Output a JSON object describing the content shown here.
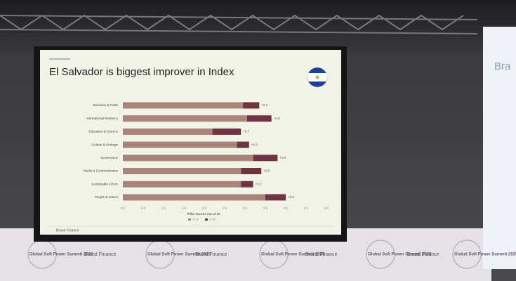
{
  "chart_data": {
    "type": "bar",
    "orientation": "horizontal",
    "stacked": true,
    "title": "El Salvador is biggest improver in Index",
    "x_label": "Pillar Scores out of 10",
    "categories": [
      "Business & Trade",
      "International Relations",
      "Education & Science",
      "Culture & Heritage",
      "Governance",
      "Media & Communication",
      "Sustainable Future",
      "People & Values"
    ],
    "series": [
      {
        "name": "2024",
        "color": "#a8857a",
        "values": [
          2.95,
          3.05,
          2.2,
          2.8,
          3.2,
          2.9,
          2.9,
          3.5
        ]
      },
      {
        "name": "2025",
        "color": "#6e3442",
        "values": [
          0.4,
          0.6,
          0.7,
          0.3,
          0.6,
          0.5,
          0.3,
          0.5
        ],
        "value_labels": [
          "+0.4",
          "+0.6",
          "+0.7",
          "+0.3",
          "+0.6",
          "+0.5",
          "+0.3",
          "+0.5"
        ]
      }
    ],
    "xlim": [
      0,
      5
    ],
    "xticks": [
      {
        "value": 0,
        "label": "0.0"
      },
      0.5,
      {
        "value": 1,
        "label": "1.0"
      },
      1.5,
      {
        "value": 2,
        "label": "2.0"
      },
      2.5,
      {
        "value": 3,
        "label": "3.0"
      },
      3.5,
      {
        "value": 4,
        "label": "4.0"
      },
      4.5,
      {
        "value": 5,
        "label": "5.0"
      }
    ],
    "legend": "bottom",
    "footer": "Brand Finance"
  },
  "backdrop": {
    "summit": "Global Soft Power Summit 2025",
    "sponsor": "Brand Finance",
    "side_panel": "Bra"
  }
}
